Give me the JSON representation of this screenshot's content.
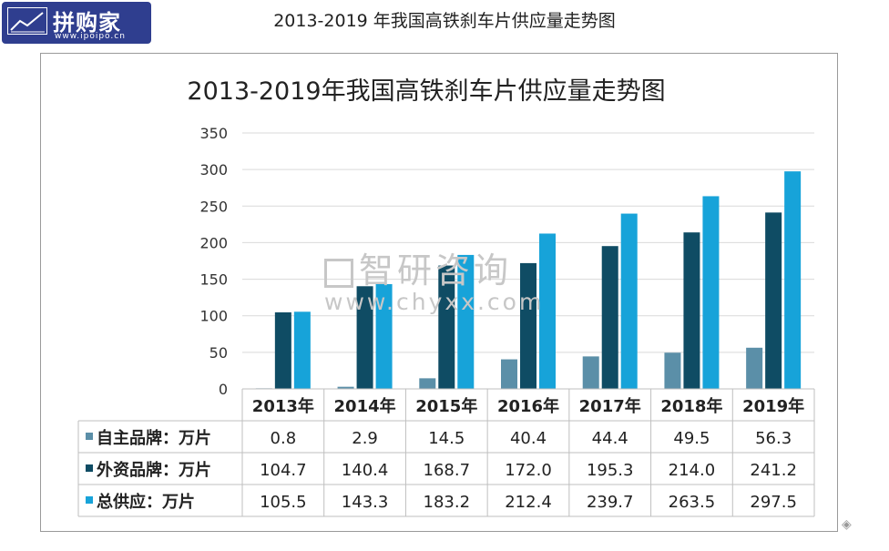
{
  "logo": {
    "main": "拼购家",
    "url": "www.ipoipo.cn",
    "icon": "chart-icon"
  },
  "page_title": "2013-2019 年我国高铁刹车片供应量走势图",
  "watermark": {
    "cn": "智研咨询",
    "url": "www.chyxx.com",
    "icon": "chyxx-logo-icon"
  },
  "colors": {
    "s0": "#5b8fa8",
    "s1": "#0f4c64",
    "s2": "#17a3d9"
  },
  "chart_data": {
    "type": "bar",
    "title": "2013-2019年我国高铁刹车片供应量走势图",
    "categories": [
      "2013年",
      "2014年",
      "2015年",
      "2016年",
      "2017年",
      "2018年",
      "2019年"
    ],
    "ylim": [
      0,
      350
    ],
    "yticks": [
      "0",
      "50",
      "100",
      "150",
      "200",
      "250",
      "300",
      "350"
    ],
    "grid": true,
    "legend": "data-table",
    "series": [
      {
        "name": "自主品牌：万片",
        "values": [
          0.8,
          2.9,
          14.5,
          40.4,
          44.4,
          49.5,
          56.3
        ],
        "labels": [
          "0.8",
          "2.9",
          "14.5",
          "40.4",
          "44.4",
          "49.5",
          "56.3"
        ]
      },
      {
        "name": "外资品牌：万片",
        "values": [
          104.7,
          140.4,
          168.7,
          172.0,
          195.3,
          214.0,
          241.2
        ],
        "labels": [
          "104.7",
          "140.4",
          "168.7",
          "172.0",
          "195.3",
          "214.0",
          "241.2"
        ]
      },
      {
        "name": "总供应：万片",
        "values": [
          105.5,
          143.3,
          183.2,
          212.4,
          239.7,
          263.5,
          297.5
        ],
        "labels": [
          "105.5",
          "143.3",
          "183.2",
          "212.4",
          "239.7",
          "263.5",
          "297.5"
        ]
      }
    ]
  }
}
